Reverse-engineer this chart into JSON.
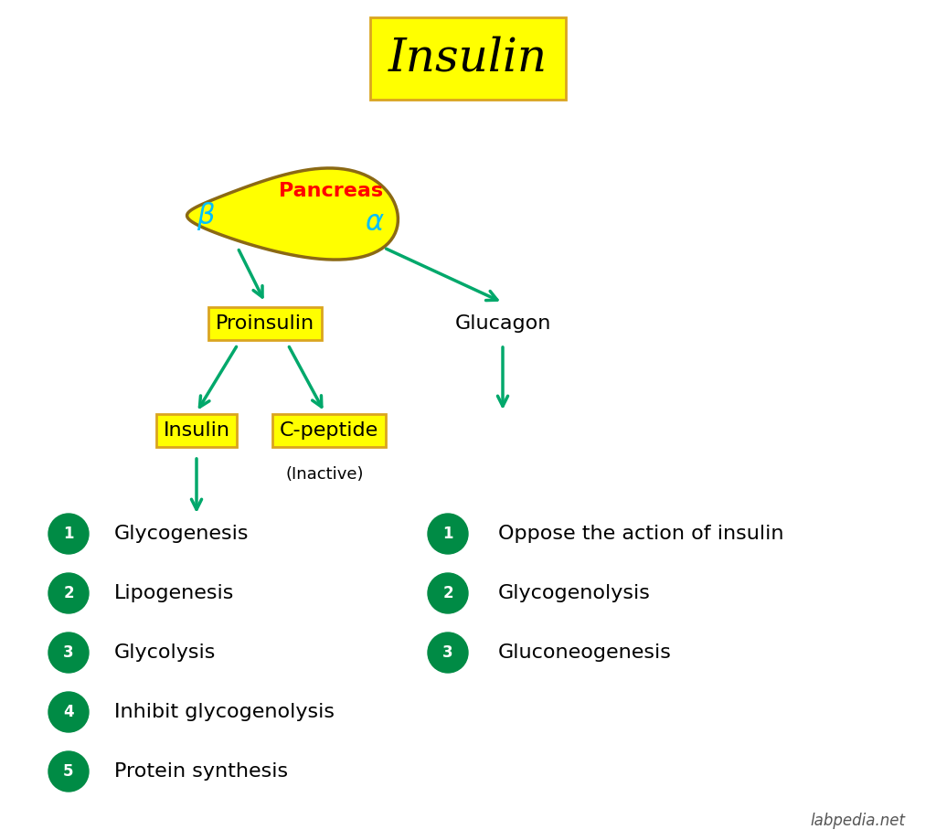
{
  "title": "Insulin",
  "title_fontsize": 36,
  "title_bg": "#FFFF00",
  "title_border": "#DAA520",
  "bg_color": "#FFFFFF",
  "green_color": "#008B45",
  "dark_green": "#006400",
  "arrow_color": "#00A86B",
  "yellow_box": "#FFFF00",
  "yellow_border": "#DAA520",
  "red_color": "#FF0000",
  "cyan_color": "#00BFFF",
  "black_color": "#000000",
  "watermark": "labpedia.net",
  "left_items": [
    "Glycogenesis",
    "Lipogenesis",
    "Glycolysis",
    "Inhibit glycogenolysis",
    "Protein synthesis"
  ],
  "right_items": [
    "Oppose the action of insulin",
    "Glycogenolysis",
    "Gluconeogenesis"
  ]
}
